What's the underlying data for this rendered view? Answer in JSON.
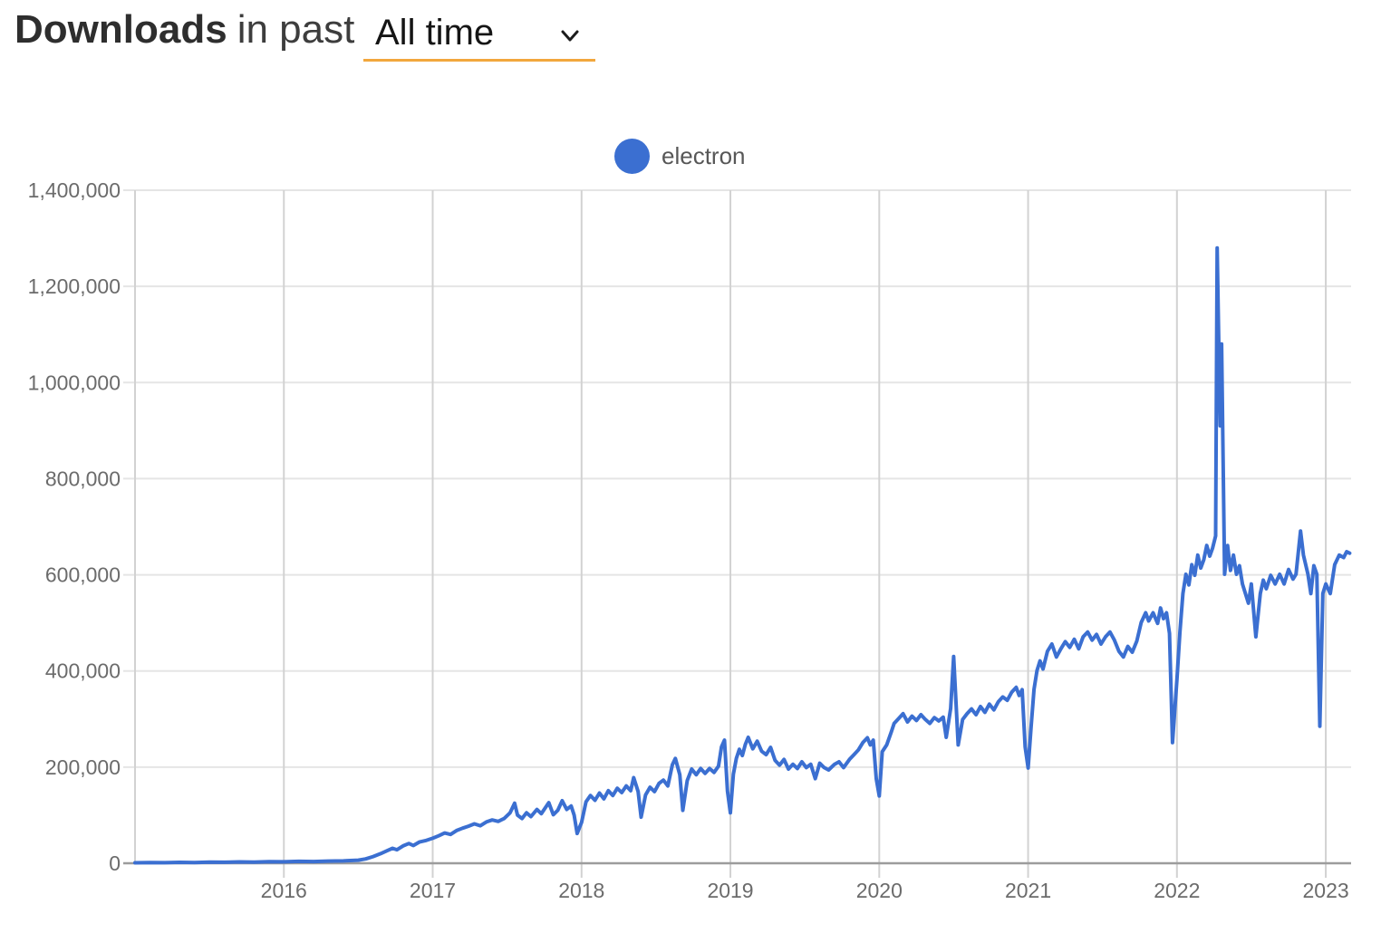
{
  "header": {
    "title_bold": "Downloads",
    "title_rest": "in past",
    "time_range_value": "All time",
    "underline_color": "#f2a73d"
  },
  "legend": {
    "items": [
      {
        "label": "electron",
        "color": "#3b6fd1"
      }
    ]
  },
  "chart_data": {
    "type": "line",
    "title": "Downloads in past All time",
    "xlabel": "",
    "ylabel": "",
    "grid": true,
    "legend_position": "top-center",
    "xlim": [
      2015.0,
      2023.17
    ],
    "ylim": [
      0,
      1400000
    ],
    "x_ticks": [
      2016,
      2017,
      2018,
      2019,
      2020,
      2021,
      2022,
      2023
    ],
    "y_ticks": [
      0,
      200000,
      400000,
      600000,
      800000,
      1000000,
      1200000,
      1400000
    ],
    "y_tick_labels": [
      "0",
      "200,000",
      "400,000",
      "600,000",
      "800,000",
      "1,000,000",
      "1,200,000",
      "1,400,000"
    ],
    "series": [
      {
        "name": "electron",
        "color": "#3b6fd1",
        "line_width": 4,
        "points": [
          [
            2015.0,
            1000
          ],
          [
            2015.1,
            1600
          ],
          [
            2015.2,
            1200
          ],
          [
            2015.3,
            1900
          ],
          [
            2015.4,
            1500
          ],
          [
            2015.5,
            2300
          ],
          [
            2015.6,
            2000
          ],
          [
            2015.7,
            2800
          ],
          [
            2015.8,
            2500
          ],
          [
            2015.9,
            3300
          ],
          [
            2016.0,
            3000
          ],
          [
            2016.1,
            3900
          ],
          [
            2016.2,
            3600
          ],
          [
            2016.3,
            4600
          ],
          [
            2016.4,
            4900
          ],
          [
            2016.5,
            6500
          ],
          [
            2016.55,
            9000
          ],
          [
            2016.6,
            14000
          ],
          [
            2016.65,
            20000
          ],
          [
            2016.7,
            27000
          ],
          [
            2016.73,
            31000
          ],
          [
            2016.76,
            28000
          ],
          [
            2016.8,
            36000
          ],
          [
            2016.84,
            41000
          ],
          [
            2016.87,
            37000
          ],
          [
            2016.91,
            44000
          ],
          [
            2016.95,
            47000
          ],
          [
            2017.0,
            52000
          ],
          [
            2017.04,
            57000
          ],
          [
            2017.08,
            63000
          ],
          [
            2017.12,
            60000
          ],
          [
            2017.16,
            68000
          ],
          [
            2017.2,
            73000
          ],
          [
            2017.24,
            77000
          ],
          [
            2017.28,
            82000
          ],
          [
            2017.32,
            78000
          ],
          [
            2017.36,
            86000
          ],
          [
            2017.4,
            90000
          ],
          [
            2017.44,
            87000
          ],
          [
            2017.48,
            93000
          ],
          [
            2017.52,
            105000
          ],
          [
            2017.55,
            125000
          ],
          [
            2017.57,
            100000
          ],
          [
            2017.6,
            93000
          ],
          [
            2017.63,
            105000
          ],
          [
            2017.66,
            97000
          ],
          [
            2017.7,
            112000
          ],
          [
            2017.73,
            103000
          ],
          [
            2017.78,
            126000
          ],
          [
            2017.81,
            101000
          ],
          [
            2017.84,
            110000
          ],
          [
            2017.87,
            130000
          ],
          [
            2017.9,
            112000
          ],
          [
            2017.93,
            119000
          ],
          [
            2017.95,
            100000
          ],
          [
            2017.97,
            62000
          ],
          [
            2018.0,
            85000
          ],
          [
            2018.03,
            128000
          ],
          [
            2018.06,
            141000
          ],
          [
            2018.09,
            131000
          ],
          [
            2018.12,
            146000
          ],
          [
            2018.15,
            134000
          ],
          [
            2018.18,
            151000
          ],
          [
            2018.21,
            141000
          ],
          [
            2018.24,
            156000
          ],
          [
            2018.27,
            147000
          ],
          [
            2018.3,
            161000
          ],
          [
            2018.33,
            151000
          ],
          [
            2018.35,
            178000
          ],
          [
            2018.38,
            149000
          ],
          [
            2018.4,
            96000
          ],
          [
            2018.43,
            142000
          ],
          [
            2018.46,
            158000
          ],
          [
            2018.49,
            149000
          ],
          [
            2018.52,
            166000
          ],
          [
            2018.55,
            173000
          ],
          [
            2018.58,
            161000
          ],
          [
            2018.61,
            205000
          ],
          [
            2018.63,
            218000
          ],
          [
            2018.66,
            184000
          ],
          [
            2018.68,
            110000
          ],
          [
            2018.71,
            172000
          ],
          [
            2018.74,
            196000
          ],
          [
            2018.77,
            184000
          ],
          [
            2018.8,
            197000
          ],
          [
            2018.83,
            187000
          ],
          [
            2018.86,
            197000
          ],
          [
            2018.89,
            189000
          ],
          [
            2018.92,
            202000
          ],
          [
            2018.94,
            242000
          ],
          [
            2018.96,
            256000
          ],
          [
            2018.98,
            150000
          ],
          [
            2019.0,
            105000
          ],
          [
            2019.02,
            185000
          ],
          [
            2019.04,
            218000
          ],
          [
            2019.06,
            237000
          ],
          [
            2019.08,
            224000
          ],
          [
            2019.1,
            247000
          ],
          [
            2019.12,
            262000
          ],
          [
            2019.15,
            238000
          ],
          [
            2019.18,
            254000
          ],
          [
            2019.21,
            233000
          ],
          [
            2019.24,
            226000
          ],
          [
            2019.27,
            241000
          ],
          [
            2019.3,
            214000
          ],
          [
            2019.33,
            204000
          ],
          [
            2019.36,
            216000
          ],
          [
            2019.39,
            196000
          ],
          [
            2019.42,
            206000
          ],
          [
            2019.45,
            197000
          ],
          [
            2019.48,
            211000
          ],
          [
            2019.51,
            199000
          ],
          [
            2019.54,
            206000
          ],
          [
            2019.57,
            176000
          ],
          [
            2019.6,
            208000
          ],
          [
            2019.63,
            199000
          ],
          [
            2019.66,
            194000
          ],
          [
            2019.7,
            206000
          ],
          [
            2019.73,
            211000
          ],
          [
            2019.76,
            199000
          ],
          [
            2019.8,
            216000
          ],
          [
            2019.83,
            226000
          ],
          [
            2019.86,
            236000
          ],
          [
            2019.89,
            251000
          ],
          [
            2019.92,
            261000
          ],
          [
            2019.94,
            246000
          ],
          [
            2019.96,
            256000
          ],
          [
            2019.98,
            176000
          ],
          [
            2020.0,
            140000
          ],
          [
            2020.02,
            232000
          ],
          [
            2020.05,
            246000
          ],
          [
            2020.08,
            272000
          ],
          [
            2020.1,
            291000
          ],
          [
            2020.13,
            301000
          ],
          [
            2020.16,
            311000
          ],
          [
            2020.19,
            294000
          ],
          [
            2020.22,
            306000
          ],
          [
            2020.25,
            297000
          ],
          [
            2020.28,
            309000
          ],
          [
            2020.31,
            299000
          ],
          [
            2020.34,
            291000
          ],
          [
            2020.37,
            303000
          ],
          [
            2020.4,
            296000
          ],
          [
            2020.43,
            304000
          ],
          [
            2020.45,
            262000
          ],
          [
            2020.48,
            322000
          ],
          [
            2020.5,
            430000
          ],
          [
            2020.53,
            246000
          ],
          [
            2020.56,
            299000
          ],
          [
            2020.59,
            311000
          ],
          [
            2020.62,
            321000
          ],
          [
            2020.65,
            309000
          ],
          [
            2020.68,
            326000
          ],
          [
            2020.71,
            314000
          ],
          [
            2020.74,
            331000
          ],
          [
            2020.77,
            319000
          ],
          [
            2020.8,
            336000
          ],
          [
            2020.83,
            346000
          ],
          [
            2020.86,
            339000
          ],
          [
            2020.89,
            356000
          ],
          [
            2020.92,
            366000
          ],
          [
            2020.94,
            349000
          ],
          [
            2020.96,
            361000
          ],
          [
            2020.98,
            242000
          ],
          [
            2021.0,
            198000
          ],
          [
            2021.02,
            282000
          ],
          [
            2021.04,
            362000
          ],
          [
            2021.06,
            401000
          ],
          [
            2021.08,
            421000
          ],
          [
            2021.1,
            404000
          ],
          [
            2021.13,
            441000
          ],
          [
            2021.16,
            456000
          ],
          [
            2021.19,
            429000
          ],
          [
            2021.22,
            446000
          ],
          [
            2021.25,
            461000
          ],
          [
            2021.28,
            449000
          ],
          [
            2021.31,
            466000
          ],
          [
            2021.34,
            446000
          ],
          [
            2021.37,
            471000
          ],
          [
            2021.4,
            481000
          ],
          [
            2021.43,
            464000
          ],
          [
            2021.46,
            476000
          ],
          [
            2021.49,
            456000
          ],
          [
            2021.52,
            471000
          ],
          [
            2021.55,
            481000
          ],
          [
            2021.58,
            464000
          ],
          [
            2021.61,
            441000
          ],
          [
            2021.64,
            429000
          ],
          [
            2021.67,
            451000
          ],
          [
            2021.7,
            439000
          ],
          [
            2021.73,
            462000
          ],
          [
            2021.76,
            501000
          ],
          [
            2021.79,
            521000
          ],
          [
            2021.81,
            504000
          ],
          [
            2021.84,
            521000
          ],
          [
            2021.87,
            499000
          ],
          [
            2021.89,
            531000
          ],
          [
            2021.91,
            509000
          ],
          [
            2021.93,
            521000
          ],
          [
            2021.95,
            478000
          ],
          [
            2021.97,
            251000
          ],
          [
            2022.0,
            382000
          ],
          [
            2022.02,
            481000
          ],
          [
            2022.04,
            561000
          ],
          [
            2022.06,
            601000
          ],
          [
            2022.08,
            579000
          ],
          [
            2022.1,
            621000
          ],
          [
            2022.12,
            599000
          ],
          [
            2022.14,
            641000
          ],
          [
            2022.16,
            614000
          ],
          [
            2022.18,
            631000
          ],
          [
            2022.2,
            661000
          ],
          [
            2022.22,
            639000
          ],
          [
            2022.24,
            656000
          ],
          [
            2022.26,
            681000
          ],
          [
            2022.27,
            1280000
          ],
          [
            2022.29,
            910000
          ],
          [
            2022.3,
            1080000
          ],
          [
            2022.32,
            601000
          ],
          [
            2022.34,
            661000
          ],
          [
            2022.36,
            609000
          ],
          [
            2022.38,
            641000
          ],
          [
            2022.4,
            601000
          ],
          [
            2022.42,
            619000
          ],
          [
            2022.44,
            581000
          ],
          [
            2022.46,
            561000
          ],
          [
            2022.48,
            541000
          ],
          [
            2022.5,
            581000
          ],
          [
            2022.53,
            471000
          ],
          [
            2022.56,
            561000
          ],
          [
            2022.58,
            589000
          ],
          [
            2022.6,
            571000
          ],
          [
            2022.63,
            599000
          ],
          [
            2022.66,
            581000
          ],
          [
            2022.69,
            601000
          ],
          [
            2022.72,
            581000
          ],
          [
            2022.75,
            611000
          ],
          [
            2022.78,
            591000
          ],
          [
            2022.8,
            601000
          ],
          [
            2022.83,
            691000
          ],
          [
            2022.85,
            641000
          ],
          [
            2022.88,
            601000
          ],
          [
            2022.9,
            561000
          ],
          [
            2022.92,
            619000
          ],
          [
            2022.94,
            601000
          ],
          [
            2022.96,
            285000
          ],
          [
            2022.98,
            561000
          ],
          [
            2023.0,
            581000
          ],
          [
            2023.03,
            561000
          ],
          [
            2023.06,
            621000
          ],
          [
            2023.09,
            641000
          ],
          [
            2023.12,
            636000
          ],
          [
            2023.14,
            648000
          ],
          [
            2023.16,
            645000
          ]
        ]
      }
    ]
  }
}
